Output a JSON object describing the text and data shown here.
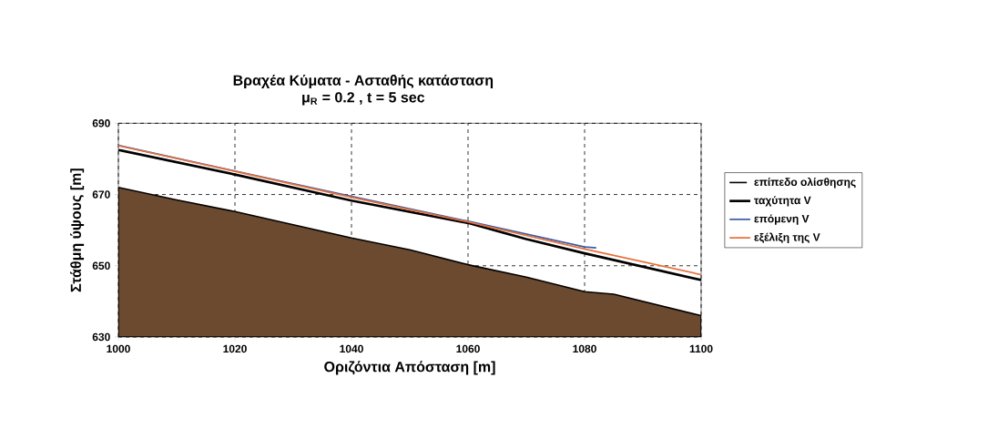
{
  "chart_data": {
    "type": "line",
    "title": "Βραχέα Κύματα  - Ασταθής κατάσταση",
    "subtitle": "μ$_{R}$ = 0.2 , t = 5 sec",
    "xlabel": "Οριζόντια Απόσταση [m]",
    "ylabel": "Στάθμη ύψους [m]",
    "xlim": [
      1000,
      1100
    ],
    "ylim": [
      630,
      690
    ],
    "xticks": [
      1000,
      1020,
      1040,
      1060,
      1080,
      1100
    ],
    "yticks": [
      630,
      650,
      670,
      690
    ],
    "grid": true,
    "legend": "right",
    "series": [
      {
        "name": "επίπεδο ολίσθησης",
        "type": "area",
        "color": "#6b4a30",
        "x": [
          1000,
          1010,
          1020,
          1030,
          1040,
          1050,
          1060,
          1070,
          1080,
          1085,
          1100
        ],
        "values": [
          672,
          668.5,
          665.2,
          661.5,
          657.8,
          654.5,
          650.3,
          646.8,
          642.7,
          642,
          636
        ]
      },
      {
        "name": "ταχύτητα V",
        "color": "#000000",
        "x": [
          1000,
          1020,
          1040,
          1060,
          1070,
          1080,
          1100
        ],
        "values": [
          682.5,
          675.6,
          668.3,
          662,
          657.5,
          653.5,
          646
        ]
      },
      {
        "name": "επόμενη V",
        "color": "#3a5ba8",
        "x": [
          1000,
          1020,
          1040,
          1060,
          1080,
          1082
        ],
        "values": [
          683.8,
          676.6,
          669.5,
          662.5,
          655.3,
          655
        ]
      },
      {
        "name": "εξέλιξη της V",
        "color": "#e8703a",
        "x": [
          1000,
          1020,
          1040,
          1060,
          1080,
          1100
        ],
        "values": [
          683.7,
          676.5,
          669.2,
          662.3,
          654.7,
          647.5
        ]
      }
    ]
  }
}
